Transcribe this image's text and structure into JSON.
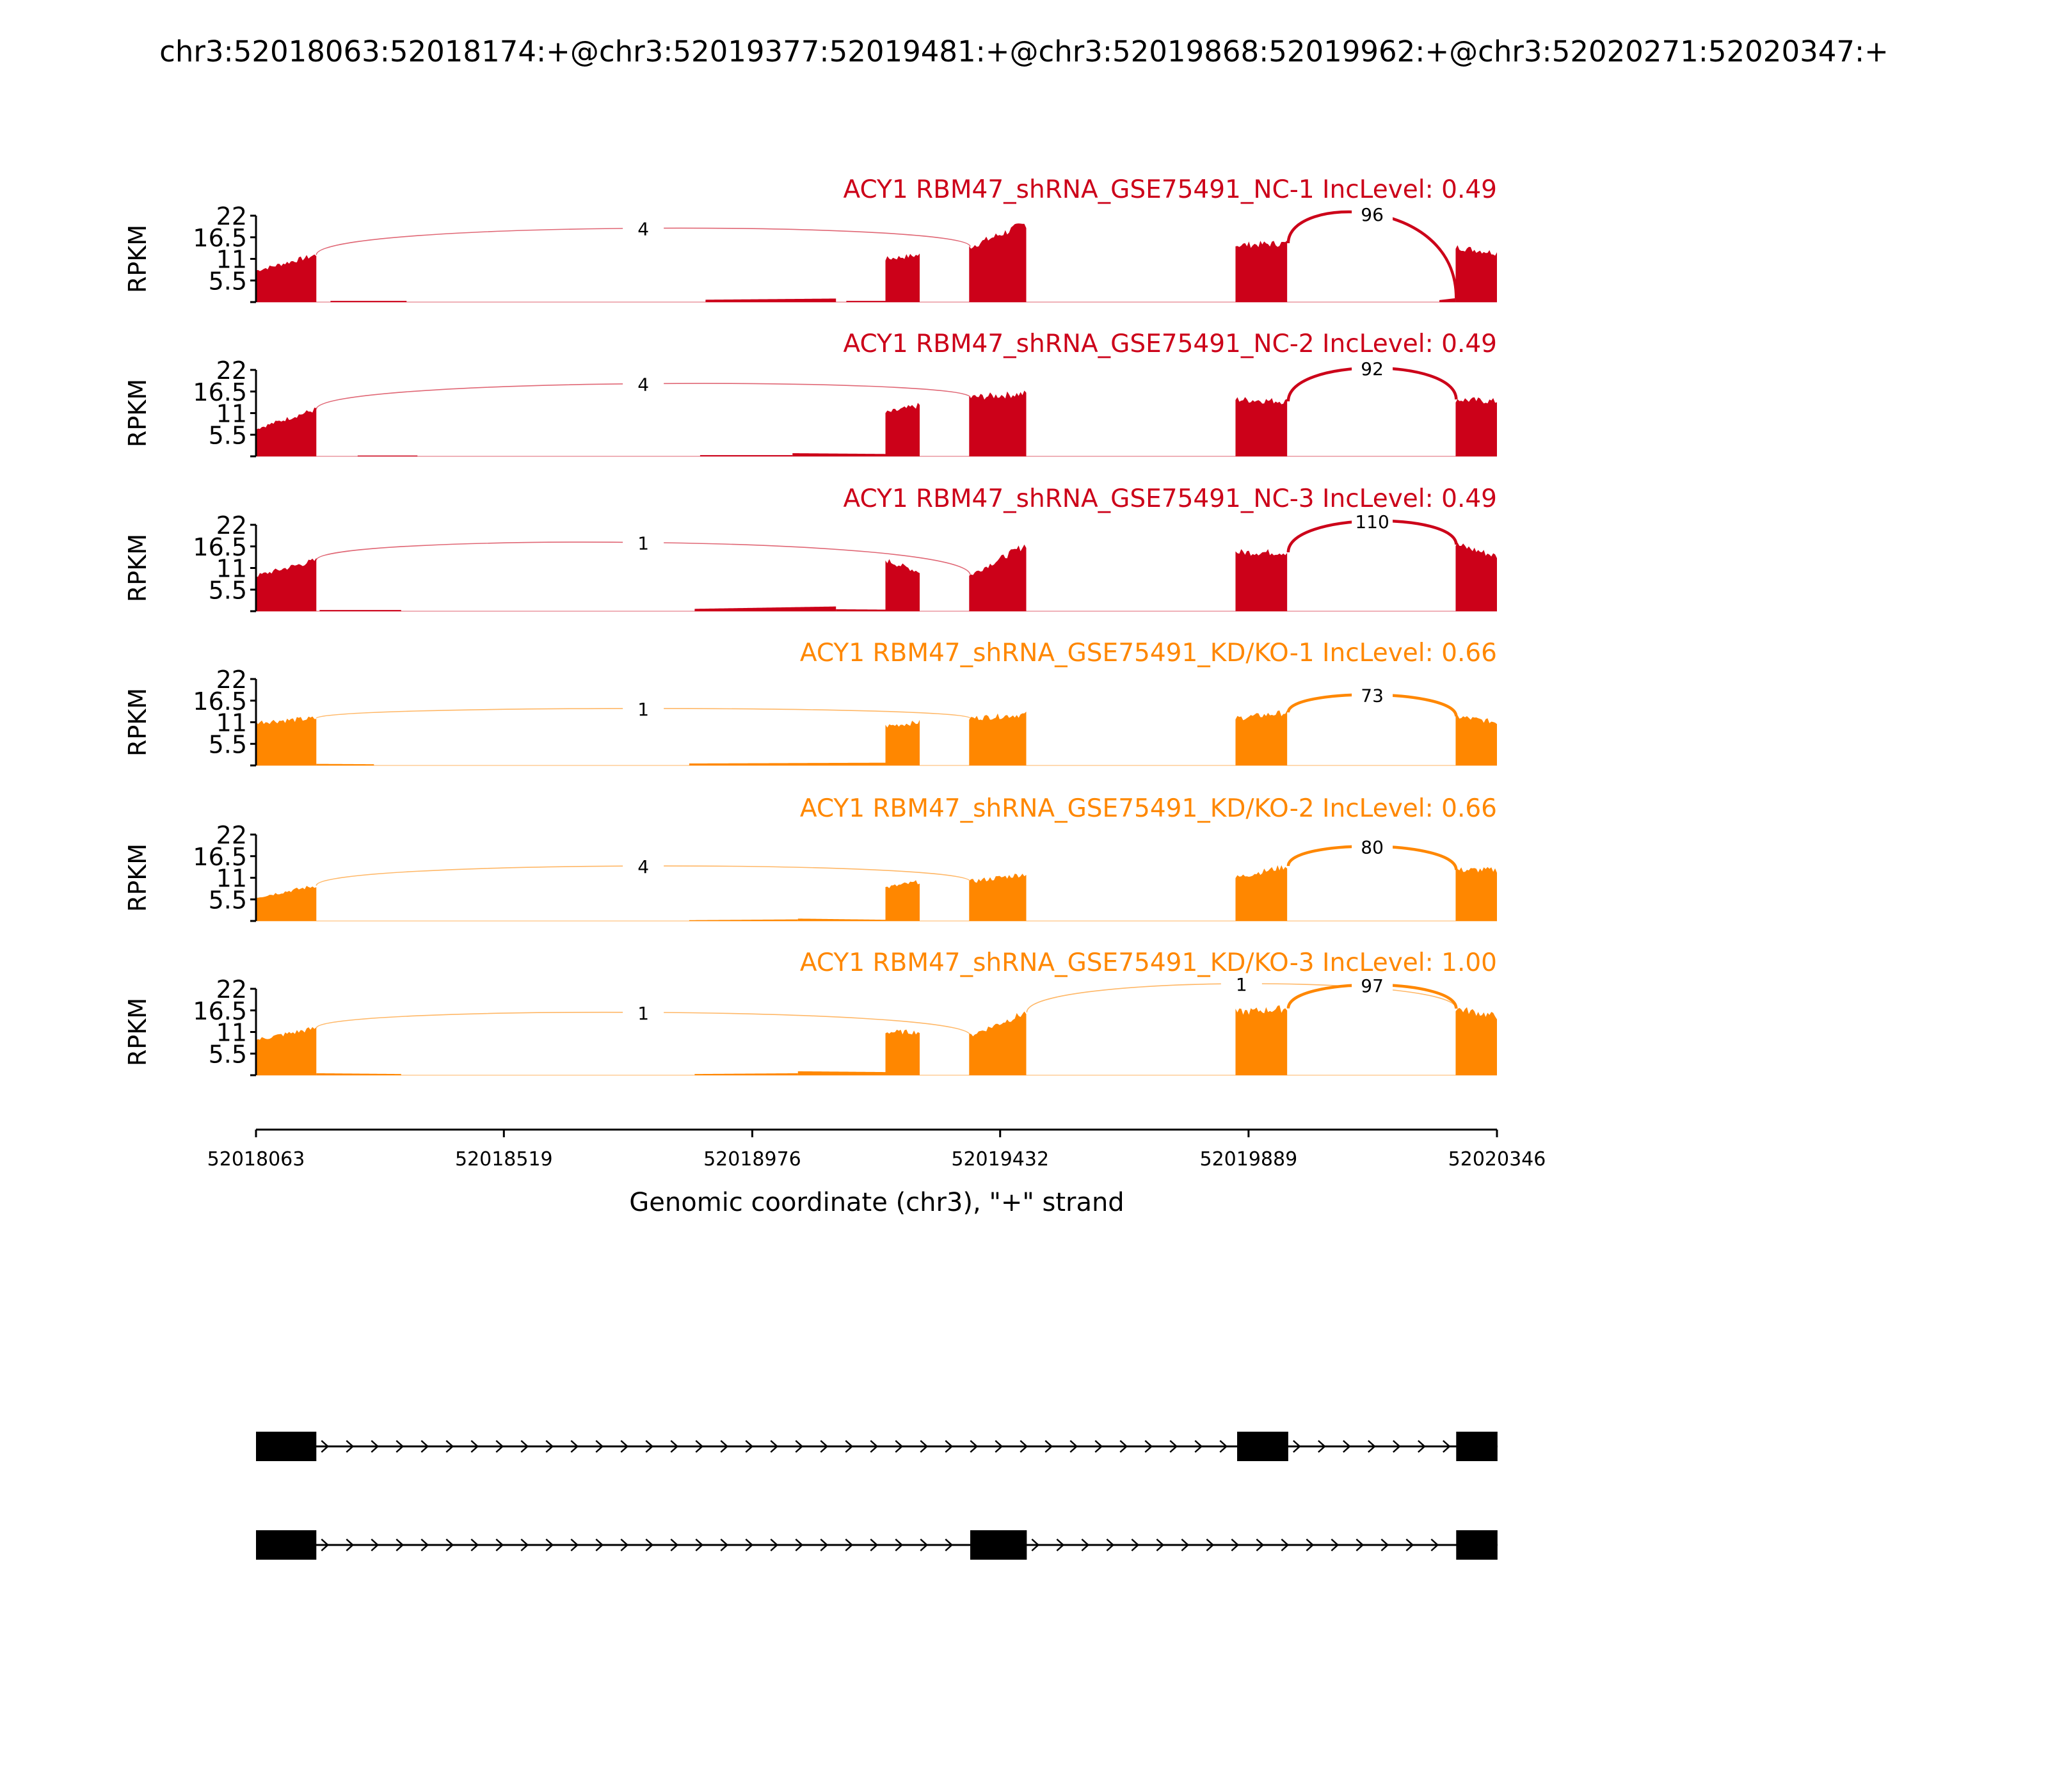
{
  "chart_data": {
    "type": "area",
    "title": "chr3:52018063:52018174:+@chr3:52019377:52019481:+@chr3:52019868:52019962:+@chr3:52020271:52020347:+",
    "xlabel": "Genomic coordinate (chr3), \"+\" strand",
    "ylabel": "RPKM",
    "xlim": [
      52018063,
      52020346
    ],
    "ylim": [
      0,
      22
    ],
    "xticks": [
      52018063,
      52018519,
      52018976,
      52019432,
      52019889,
      52020346
    ],
    "xtick_labels": [
      "52018063",
      "52018519",
      "52018976",
      "52019432",
      "52019889",
      "52020346"
    ],
    "yticks": [
      5.5,
      11,
      16.5,
      22
    ],
    "ytick_labels": [
      "5.5",
      "11",
      "16.5",
      "22"
    ],
    "colors": {
      "nc": "#cc0119",
      "kd": "#ff8700"
    },
    "exons": [
      [
        52018063,
        52018174
      ],
      [
        52019377,
        52019481
      ],
      [
        52019868,
        52019962
      ],
      [
        52020271,
        52020347
      ]
    ],
    "isoforms": [
      [
        0,
        2,
        3
      ],
      [
        0,
        1,
        3
      ]
    ],
    "samples": [
      {
        "label": "ACY1 RBM47_shRNA_GSE75491_NC-1 IncLevel: 0.49",
        "color": "#cc0119",
        "coverage": [
          [
            52018063,
            52018174,
            8,
            12
          ],
          [
            52018200,
            52018340,
            0.3,
            0.3
          ],
          [
            52018890,
            52019130,
            0.6,
            0.9
          ],
          [
            52019149,
            52019221,
            0.3,
            0.3
          ],
          [
            52019221,
            52019284,
            11,
            12
          ],
          [
            52019375,
            52019480,
            14,
            20
          ],
          [
            52019865,
            52019960,
            14.5,
            15
          ],
          [
            52020240,
            52020270,
            0.5,
            1
          ],
          [
            52020270,
            52020346,
            14,
            12.5
          ]
        ],
        "junctions": [
          {
            "start": 52018174,
            "end": 52019377,
            "count": 4,
            "peak": 18.8
          },
          {
            "start": 52019962,
            "end": 52020271,
            "count": 96,
            "peak": 22.5
          }
        ]
      },
      {
        "label": "ACY1 RBM47_shRNA_GSE75491_NC-2 IncLevel: 0.49",
        "color": "#cc0119",
        "coverage": [
          [
            52018063,
            52018174,
            7,
            12
          ],
          [
            52018250,
            52018360,
            0.2,
            0.2
          ],
          [
            52018880,
            52019050,
            0.3,
            0.3
          ],
          [
            52019050,
            52019221,
            0.8,
            0.6
          ],
          [
            52019221,
            52019284,
            11,
            13
          ],
          [
            52019375,
            52019480,
            15,
            16
          ],
          [
            52019865,
            52019960,
            14.5,
            14
          ],
          [
            52020270,
            52020346,
            14.5,
            14
          ]
        ],
        "junctions": [
          {
            "start": 52018174,
            "end": 52019377,
            "count": 4,
            "peak": 18.5
          },
          {
            "start": 52019962,
            "end": 52020271,
            "count": 92,
            "peak": 22.5
          }
        ]
      },
      {
        "label": "ACY1 RBM47_shRNA_GSE75491_NC-3 IncLevel: 0.49",
        "color": "#cc0119",
        "coverage": [
          [
            52018063,
            52018174,
            9,
            13
          ],
          [
            52018180,
            52018330,
            0.3,
            0.3
          ],
          [
            52018870,
            52019130,
            0.6,
            1.2
          ],
          [
            52019130,
            52019221,
            0.5,
            0.4
          ],
          [
            52019221,
            52019284,
            13,
            10
          ],
          [
            52019375,
            52019480,
            9,
            17
          ],
          [
            52019865,
            52019960,
            15,
            15
          ],
          [
            52020270,
            52020346,
            17,
            14
          ]
        ],
        "junctions": [
          {
            "start": 52018174,
            "end": 52019377,
            "count": 1,
            "peak": 17.5
          },
          {
            "start": 52019962,
            "end": 52020271,
            "count": 110,
            "peak": 23
          }
        ]
      },
      {
        "label": "ACY1 RBM47_shRNA_GSE75491_KD/KO-1 IncLevel: 0.66",
        "color": "#ff8700",
        "coverage": [
          [
            52018063,
            52018174,
            11,
            12
          ],
          [
            52018174,
            52018280,
            0.4,
            0.3
          ],
          [
            52018860,
            52019221,
            0.5,
            0.7
          ],
          [
            52019221,
            52019284,
            10,
            11
          ],
          [
            52019375,
            52019480,
            12,
            13
          ],
          [
            52019865,
            52019960,
            12,
            13.5
          ],
          [
            52020270,
            52020346,
            12.5,
            11
          ]
        ],
        "junctions": [
          {
            "start": 52018174,
            "end": 52019377,
            "count": 1,
            "peak": 14.5
          },
          {
            "start": 52019962,
            "end": 52020271,
            "count": 73,
            "peak": 18
          }
        ]
      },
      {
        "label": "ACY1 RBM47_shRNA_GSE75491_KD/KO-2 IncLevel: 0.66",
        "color": "#ff8700",
        "coverage": [
          [
            52018063,
            52018174,
            6,
            9
          ],
          [
            52018860,
            52019060,
            0.2,
            0.4
          ],
          [
            52019060,
            52019221,
            0.6,
            0.3
          ],
          [
            52019221,
            52019284,
            8.5,
            10
          ],
          [
            52019375,
            52019480,
            10,
            12
          ],
          [
            52019865,
            52019960,
            11,
            14
          ],
          [
            52020270,
            52020346,
            13,
            13
          ]
        ],
        "junctions": [
          {
            "start": 52018174,
            "end": 52019377,
            "count": 4,
            "peak": 14
          },
          {
            "start": 52019962,
            "end": 52020271,
            "count": 80,
            "peak": 19
          }
        ]
      },
      {
        "label": "ACY1 RBM47_shRNA_GSE75491_KD/KO-3 IncLevel: 1.00",
        "color": "#ff8700",
        "coverage": [
          [
            52018063,
            52018174,
            9,
            12
          ],
          [
            52018174,
            52018330,
            0.5,
            0.3
          ],
          [
            52018870,
            52019060,
            0.3,
            0.5
          ],
          [
            52019060,
            52019221,
            1,
            0.8
          ],
          [
            52019221,
            52019284,
            11,
            11
          ],
          [
            52019375,
            52019480,
            10,
            16
          ],
          [
            52019865,
            52019960,
            16,
            17
          ],
          [
            52020270,
            52020346,
            17,
            15
          ]
        ],
        "junctions": [
          {
            "start": 52018174,
            "end": 52019377,
            "count": 1,
            "peak": 16
          },
          {
            "start": 52019481,
            "end": 52020271,
            "count": 1,
            "peak": 23.3
          },
          {
            "start": 52019962,
            "end": 52020271,
            "count": 97,
            "peak": 23
          }
        ]
      }
    ]
  }
}
